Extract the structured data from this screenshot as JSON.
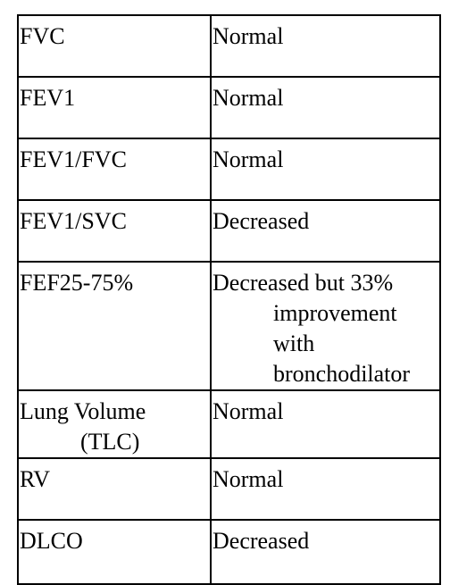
{
  "table": {
    "rows": [
      {
        "test": "FVC",
        "result": "Normal"
      },
      {
        "test": "FEV1",
        "result": "Normal"
      },
      {
        "test": "FEV1/FVC",
        "result": "Normal"
      },
      {
        "test": "FEV1/SVC",
        "result": "Decreased"
      },
      {
        "test": "FEF25-75%",
        "result_lines": [
          "Decreased but 33%",
          "improvement",
          "with",
          "bronchodilator"
        ]
      },
      {
        "test_lines": [
          "Lung Volume",
          "(TLC)"
        ],
        "result": "Normal"
      },
      {
        "test": "RV",
        "result": "Normal"
      },
      {
        "test": "DLCO",
        "result": "Decreased"
      }
    ]
  }
}
